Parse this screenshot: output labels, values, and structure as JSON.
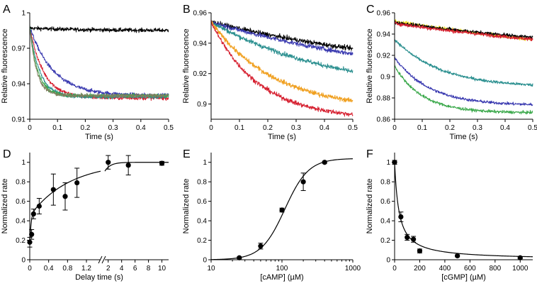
{
  "chart_data": [
    {
      "id": "A",
      "panel_label": "A",
      "type": "line",
      "xlabel": "Time (s)",
      "ylabel": "Relative fluorescence",
      "xlim": [
        0,
        0.5
      ],
      "ylim": [
        0.91,
        1.0
      ],
      "xticks": [
        0,
        0.1,
        0.2,
        0.3,
        0.4,
        0.5
      ],
      "xtick_labels": [
        "0",
        "0.1",
        "0.2",
        "0.3",
        "0.4",
        "0.5"
      ],
      "yticks": [
        0.91,
        0.94,
        0.97,
        1.0
      ],
      "ytick_labels": [
        "0.91",
        "0.94",
        "0.97",
        "1"
      ],
      "series": [
        {
          "color": "#000000",
          "y0": 0.987,
          "yinf": 0.985,
          "rate": 5,
          "noise": 0.0012
        },
        {
          "color": "#3a3ab0",
          "y0": 0.988,
          "yinf": 0.93,
          "rate": 12,
          "noise": 0.0012
        },
        {
          "color": "#d62030",
          "y0": 0.988,
          "yinf": 0.928,
          "rate": 20,
          "noise": 0.0012
        },
        {
          "color": "#2a8f8f",
          "y0": 0.988,
          "yinf": 0.929,
          "rate": 28,
          "noise": 0.0012
        },
        {
          "color": "#3aa84a",
          "y0": 0.988,
          "yinf": 0.93,
          "rate": 35,
          "noise": 0.0012
        },
        {
          "color": "#808060",
          "y0": 0.988,
          "yinf": 0.93,
          "rate": 40,
          "noise": 0.0012
        }
      ]
    },
    {
      "id": "B",
      "panel_label": "B",
      "type": "line",
      "xlabel": "Time (s)",
      "ylabel": "Relative fluorescence",
      "xlim": [
        0,
        0.5
      ],
      "ylim": [
        0.89,
        0.96
      ],
      "xticks": [
        0,
        0.1,
        0.2,
        0.3,
        0.4,
        0.5
      ],
      "xtick_labels": [
        "0",
        "0.1",
        "0.2",
        "0.3",
        "0.4",
        "0.5"
      ],
      "yticks": [
        0.9,
        0.92,
        0.94,
        0.96
      ],
      "ytick_labels": [
        "0.9",
        "0.92",
        "0.94",
        "0.96"
      ],
      "series": [
        {
          "color": "#000000",
          "y0": 0.954,
          "yinf": 0.915,
          "rate": 1.2,
          "noise": 0.0011
        },
        {
          "color": "#3a3ab0",
          "y0": 0.954,
          "yinf": 0.91,
          "rate": 1.3,
          "noise": 0.0011
        },
        {
          "color": "#2a8f8f",
          "y0": 0.954,
          "yinf": 0.905,
          "rate": 2.2,
          "noise": 0.0011
        },
        {
          "color": "#f0a020",
          "y0": 0.954,
          "yinf": 0.896,
          "rate": 4.5,
          "noise": 0.0011
        },
        {
          "color": "#d62030",
          "y0": 0.954,
          "yinf": 0.89,
          "rate": 6.0,
          "noise": 0.0011
        }
      ]
    },
    {
      "id": "C",
      "panel_label": "C",
      "type": "line",
      "xlabel": "Time (s)",
      "ylabel": "Relative fluorescence",
      "xlim": [
        0,
        0.5
      ],
      "ylim": [
        0.86,
        0.96
      ],
      "xticks": [
        0,
        0.1,
        0.2,
        0.3,
        0.4,
        0.5
      ],
      "xtick_labels": [
        "0",
        "0.1",
        "0.2",
        "0.3",
        "0.4",
        "0.5"
      ],
      "yticks": [
        0.86,
        0.88,
        0.9,
        0.92,
        0.94,
        0.96
      ],
      "ytick_labels": [
        "0.86",
        "0.88",
        "0.9",
        "0.92",
        "0.94",
        "0.96"
      ],
      "series": [
        {
          "color": "#f0e020",
          "y0": 0.952,
          "yinf": 0.9,
          "rate": 0.8,
          "noise": 0.0012
        },
        {
          "color": "#000000",
          "y0": 0.951,
          "yinf": 0.915,
          "rate": 1.0,
          "noise": 0.0012
        },
        {
          "color": "#d62030",
          "y0": 0.95,
          "yinf": 0.912,
          "rate": 1.0,
          "noise": 0.0012
        },
        {
          "color": "#2a8f8f",
          "y0": 0.935,
          "yinf": 0.89,
          "rate": 6,
          "noise": 0.001
        },
        {
          "color": "#3a3ab0",
          "y0": 0.918,
          "yinf": 0.873,
          "rate": 8,
          "noise": 0.001
        },
        {
          "color": "#3aa84a",
          "y0": 0.91,
          "yinf": 0.866,
          "rate": 10,
          "noise": 0.001
        }
      ]
    },
    {
      "id": "D",
      "panel_label": "D",
      "type": "scatter",
      "xlabel": "Delay time (s)",
      "ylabel": "Normalized rate",
      "ylim": [
        0,
        1.1
      ],
      "yticks": [
        0,
        0.2,
        0.4,
        0.6,
        0.8,
        1
      ],
      "ytick_labels": [
        "0",
        "0.2",
        "0.4",
        "0.6",
        "0.8",
        "1"
      ],
      "x_segments": [
        {
          "xlim": [
            0,
            1.5
          ],
          "xticks": [
            0,
            0.4,
            0.8,
            1.2
          ],
          "xtick_labels": [
            "0",
            "0.4",
            "0.8",
            "1.2"
          ]
        },
        {
          "xlim": [
            1.5,
            11
          ],
          "xticks": [
            2,
            4,
            6,
            8,
            10
          ],
          "xtick_labels": [
            "2",
            "4",
            "6",
            "8",
            "10"
          ]
        }
      ],
      "points": [
        {
          "x": 0.0,
          "y": 0.18,
          "err": 0.05
        },
        {
          "x": 0.04,
          "y": 0.26,
          "err": 0.05
        },
        {
          "x": 0.08,
          "y": 0.47,
          "err": 0.05
        },
        {
          "x": 0.2,
          "y": 0.55,
          "err": 0.08
        },
        {
          "x": 0.5,
          "y": 0.72,
          "err": 0.16
        },
        {
          "x": 0.75,
          "y": 0.65,
          "err": 0.14
        },
        {
          "x": 1.0,
          "y": 0.79,
          "err": 0.15
        },
        {
          "x": 2.0,
          "y": 1.0,
          "err": 0.07
        },
        {
          "x": 5.0,
          "y": 0.97,
          "err": 0.1
        },
        {
          "x": 10.0,
          "y": 0.99,
          "err": 0.02
        }
      ],
      "fit": {
        "type": "biexp",
        "y0": 0.15,
        "a1": 0.3,
        "k1": 40,
        "a2": 0.55,
        "k2": 1.2
      }
    },
    {
      "id": "E",
      "panel_label": "E",
      "type": "scatter",
      "xlabel": "[cAMP] (µM)",
      "ylabel": "Normalized rate",
      "xscale": "log",
      "xlim": [
        10,
        1000
      ],
      "ylim": [
        0,
        1.1
      ],
      "xticks": [
        10,
        100,
        1000
      ],
      "xtick_labels": [
        "10",
        "100",
        "1000"
      ],
      "yticks": [
        0,
        0.2,
        0.4,
        0.6,
        0.8,
        1
      ],
      "ytick_labels": [
        "0",
        "0.2",
        "0.4",
        "0.6",
        "0.8",
        "1"
      ],
      "points": [
        {
          "x": 25,
          "y": 0.02,
          "err": 0.01
        },
        {
          "x": 50,
          "y": 0.14,
          "err": 0.03
        },
        {
          "x": 100,
          "y": 0.51,
          "err": 0.02
        },
        {
          "x": 200,
          "y": 0.8,
          "err": 0.09
        },
        {
          "x": 400,
          "y": 1.0,
          "err": 0.01
        }
      ],
      "fit": {
        "type": "hill",
        "ymax": 1.04,
        "K": 110,
        "n": 2.6
      }
    },
    {
      "id": "F",
      "panel_label": "F",
      "type": "scatter",
      "xlabel": "[cGMP] (µM)",
      "ylabel": "Normalized rate",
      "xlim": [
        0,
        1100
      ],
      "ylim": [
        0,
        1.1
      ],
      "xticks": [
        0,
        200,
        400,
        600,
        800,
        1000
      ],
      "xtick_labels": [
        "0",
        "200",
        "400",
        "600",
        "800",
        "1000"
      ],
      "yticks": [
        0,
        0.2,
        0.4,
        0.6,
        0.8,
        1
      ],
      "ytick_labels": [
        "0",
        "0.2",
        "0.4",
        "0.6",
        "0.8",
        "1"
      ],
      "points": [
        {
          "x": 0,
          "y": 1.0,
          "err": 0.02
        },
        {
          "x": 50,
          "y": 0.44,
          "err": 0.05
        },
        {
          "x": 100,
          "y": 0.23,
          "err": 0.03
        },
        {
          "x": 150,
          "y": 0.21,
          "err": 0.03
        },
        {
          "x": 200,
          "y": 0.09,
          "err": 0.02
        },
        {
          "x": 500,
          "y": 0.04,
          "err": 0.01
        },
        {
          "x": 1000,
          "y": 0.02,
          "err": 0.01
        }
      ],
      "fit": {
        "type": "inhibition",
        "K": 35
      }
    }
  ]
}
